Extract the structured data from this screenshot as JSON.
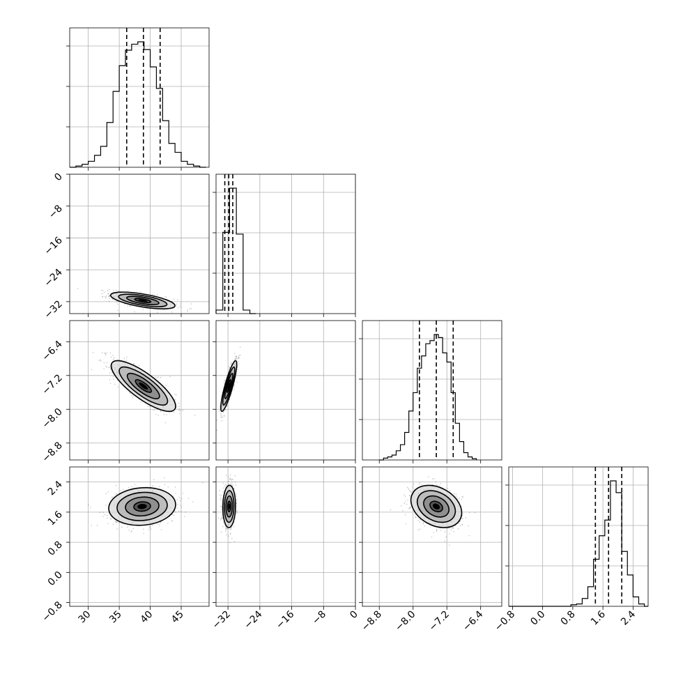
{
  "chart_data": {
    "type": "corner",
    "params": [
      {
        "range": [
          27,
          49.5
        ],
        "ticks": [
          30,
          35,
          40,
          45
        ],
        "tick_labels": [
          "30",
          "35",
          "40",
          "45"
        ],
        "quantiles": [
          36.2,
          38.9,
          41.6
        ],
        "hist_edges": [
          27,
          28,
          29,
          30,
          31,
          32,
          33,
          34,
          35,
          36,
          37,
          38,
          39,
          40,
          41,
          42,
          43,
          44,
          45,
          46,
          47,
          48,
          49
        ],
        "hist_counts": [
          0,
          2,
          5,
          10,
          20,
          35,
          75,
          127,
          170,
          196,
          206,
          210,
          197,
          168,
          132,
          78,
          40,
          25,
          10,
          5,
          2,
          0
        ]
      },
      {
        "range": [
          -35,
          0
        ],
        "ticks": [
          -32,
          -24,
          -16,
          -8,
          0
        ],
        "tick_labels": [
          "−32",
          "−24",
          "−16",
          "−8",
          "0"
        ],
        "quantiles": [
          -32.8,
          -31.8,
          -30.8
        ],
        "hist_edges": [
          -35,
          -33.3,
          -31.6,
          -29.9,
          -28.2,
          -26.5,
          -25
        ],
        "hist_counts": [
          2,
          46,
          71,
          45,
          2,
          0
        ]
      },
      {
        "range": [
          -9.2,
          -5.9
        ],
        "ticks": [
          -8.8,
          -8.0,
          -7.2,
          -6.4
        ],
        "tick_labels": [
          "−8.8",
          "−8.0",
          "−7.2",
          "−6.4"
        ],
        "quantiles": [
          -7.85,
          -7.45,
          -7.05
        ],
        "hist_edges": [
          -8.8,
          -8.7,
          -8.6,
          -8.5,
          -8.4,
          -8.3,
          -8.2,
          -8.1,
          -8.0,
          -7.9,
          -7.8,
          -7.7,
          -7.6,
          -7.5,
          -7.4,
          -7.3,
          -7.2,
          -7.1,
          -7.0,
          -6.9,
          -6.8,
          -6.7,
          -6.6,
          -6.5
        ],
        "hist_counts": [
          0,
          3,
          5,
          8,
          15,
          25,
          45,
          80,
          110,
          150,
          170,
          190,
          195,
          205,
          200,
          175,
          160,
          110,
          60,
          30,
          12,
          5,
          2
        ]
      },
      {
        "range": [
          -0.9,
          2.8
        ],
        "ticks": [
          -0.8,
          0.0,
          0.8,
          1.6,
          2.4
        ],
        "tick_labels": [
          "−0.8",
          "0.0",
          "0.8",
          "1.6",
          "2.4"
        ],
        "quantiles": [
          1.4,
          1.75,
          2.1
        ],
        "hist_edges": [
          -0.9,
          0.75,
          0.9,
          1.05,
          1.2,
          1.35,
          1.5,
          1.65,
          1.8,
          1.95,
          2.1,
          2.25,
          2.4,
          2.55,
          2.7,
          2.8
        ],
        "hist_counts": [
          0,
          2,
          3,
          10,
          25,
          60,
          90,
          110,
          160,
          145,
          70,
          40,
          12,
          3,
          0
        ]
      }
    ],
    "pairs": [
      {
        "row": 1,
        "col": 0,
        "mean": [
          38.8,
          -31.7
        ],
        "sd": [
          2.6,
          1.05
        ],
        "rho": -0.62
      },
      {
        "row": 2,
        "col": 0,
        "mean": [
          38.9,
          -7.45
        ],
        "sd": [
          2.6,
          0.3
        ],
        "rho": -0.8
      },
      {
        "row": 2,
        "col": 1,
        "mean": [
          -31.8,
          -7.45
        ],
        "sd": [
          1.0,
          0.3
        ],
        "rho": 0.86
      },
      {
        "row": 3,
        "col": 0,
        "mean": [
          38.7,
          1.75
        ],
        "sd": [
          2.7,
          0.25
        ],
        "rho": 0.1
      },
      {
        "row": 3,
        "col": 1,
        "mean": [
          -31.7,
          1.75
        ],
        "sd": [
          0.8,
          0.28
        ],
        "rho": 0.05
      },
      {
        "row": 3,
        "col": 2,
        "mean": [
          -7.45,
          1.75
        ],
        "sd": [
          0.3,
          0.28
        ],
        "rho": -0.3
      }
    ],
    "contour_levels_sigma": [
      0.5,
      1.0,
      1.5,
      2.0
    ],
    "grid": true
  }
}
